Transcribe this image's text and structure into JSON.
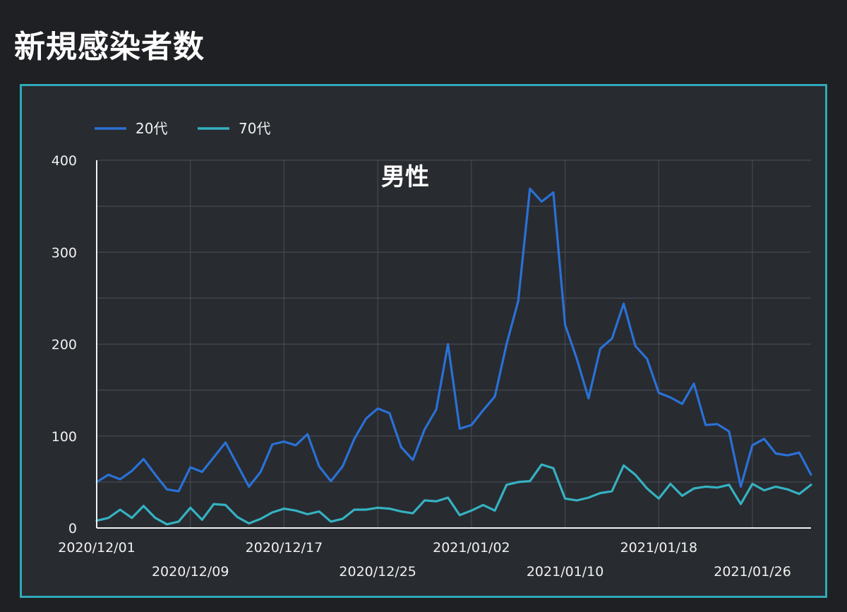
{
  "page": {
    "title": "新規感染者数"
  },
  "chart_data": {
    "type": "line",
    "title": "男性",
    "x_start": "2020/12/01",
    "x_labels": [
      "2020/12/01",
      "2020/12/09",
      "2020/12/17",
      "2020/12/25",
      "2021/01/02",
      "2021/01/10",
      "2021/01/18",
      "2021/01/26"
    ],
    "ylim": [
      0,
      400
    ],
    "y_ticks": [
      0,
      100,
      200,
      300,
      400
    ],
    "grid": true,
    "legend_position": "top-left",
    "series": [
      {
        "name": "20代",
        "color": "#2a71d6",
        "values": [
          50,
          58,
          53,
          62,
          75,
          58,
          42,
          40,
          66,
          61,
          77,
          93,
          69,
          45,
          61,
          91,
          94,
          90,
          102,
          67,
          51,
          67,
          97,
          119,
          130,
          125,
          88,
          74,
          107,
          129,
          200,
          108,
          112,
          128,
          143,
          200,
          247,
          369,
          355,
          365,
          221,
          184,
          141,
          195,
          206,
          244,
          198,
          184,
          147,
          142,
          135,
          157,
          112,
          113,
          105,
          45,
          90,
          97,
          81,
          79,
          82,
          58
        ]
      },
      {
        "name": "70代",
        "color": "#35b2c2",
        "values": [
          8,
          11,
          20,
          11,
          24,
          11,
          4,
          7,
          22,
          9,
          26,
          25,
          12,
          5,
          10,
          17,
          21,
          19,
          15,
          18,
          7,
          10,
          20,
          20,
          22,
          21,
          18,
          16,
          30,
          29,
          33,
          14,
          19,
          25,
          19,
          47,
          50,
          51,
          69,
          65,
          32,
          30,
          33,
          38,
          40,
          68,
          58,
          43,
          32,
          48,
          35,
          43,
          45,
          44,
          47,
          26,
          48,
          41,
          45,
          42,
          37,
          47
        ]
      }
    ]
  }
}
